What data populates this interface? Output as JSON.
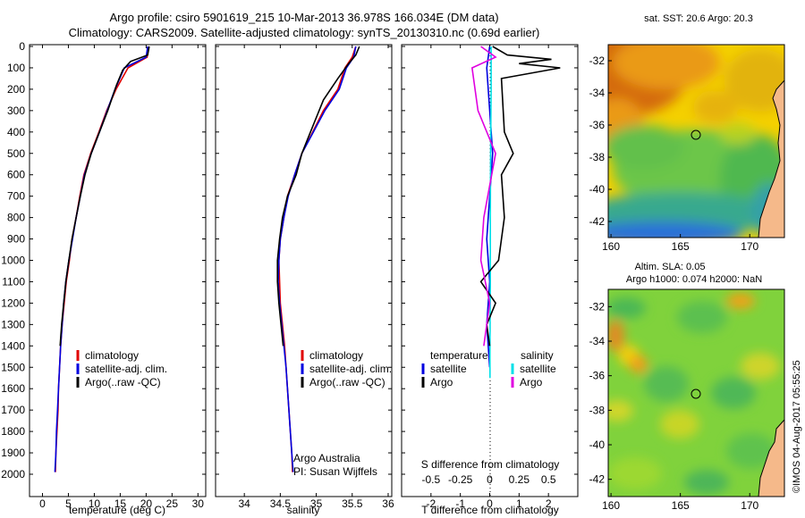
{
  "header": {
    "line1": "Argo profile: csiro 5901619_215 10-Mar-2013 36.978S 166.034E (DM data)",
    "line2": "Climatology: CARS2009. Satellite-adjusted climatology: synTS_20130310.nc (0.69d earlier)"
  },
  "depth_ticks": [
    "0",
    "100",
    "200",
    "300",
    "400",
    "500",
    "600",
    "700",
    "800",
    "900",
    "1000",
    "1100",
    "1200",
    "1300",
    "1400",
    "1500",
    "1600",
    "1700",
    "1800",
    "1900",
    "2000"
  ],
  "colors": {
    "climatology": "#e00000",
    "satellite": "#0000e0",
    "argo": "#000000",
    "sat_salinity": "#00e0e8",
    "argo_salinity": "#e000e0",
    "land": "#f5b98a"
  },
  "chart_data": [
    {
      "type": "line",
      "xlabel": "temperature (deg C)",
      "x_ticks": [
        "0",
        "5",
        "10",
        "15",
        "20",
        "25",
        "30"
      ],
      "xlim": [
        -2.5,
        31.5
      ],
      "ylim": [
        2000,
        0
      ],
      "legend": [
        "climatology",
        "satellite-adj. clim.",
        "Argo(..raw -QC)"
      ],
      "series": [
        {
          "name": "climatology",
          "color": "#e00000",
          "points": [
            [
              20.4,
              0
            ],
            [
              20.2,
              50
            ],
            [
              16.5,
              100
            ],
            [
              14.2,
              200
            ],
            [
              12.4,
              300
            ],
            [
              10.9,
              400
            ],
            [
              9.3,
              500
            ],
            [
              8.0,
              600
            ],
            [
              7.2,
              700
            ],
            [
              6.5,
              800
            ],
            [
              5.7,
              900
            ],
            [
              5.2,
              1000
            ],
            [
              4.6,
              1100
            ],
            [
              4.2,
              1200
            ],
            [
              3.8,
              1300
            ],
            [
              3.5,
              1400
            ],
            [
              3.3,
              1500
            ],
            [
              3.1,
              1600
            ],
            [
              3.0,
              1700
            ],
            [
              2.8,
              1800
            ],
            [
              2.6,
              1900
            ],
            [
              2.5,
              1990
            ]
          ]
        },
        {
          "name": "satellite-adj. clim.",
          "color": "#0000e0",
          "points": [
            [
              20.3,
              0
            ],
            [
              20.0,
              50
            ],
            [
              15.8,
              100
            ],
            [
              14.0,
              200
            ],
            [
              12.5,
              300
            ],
            [
              11.0,
              400
            ],
            [
              9.4,
              500
            ],
            [
              8.1,
              600
            ],
            [
              7.3,
              700
            ],
            [
              6.5,
              800
            ],
            [
              5.8,
              900
            ],
            [
              5.1,
              1000
            ],
            [
              4.5,
              1100
            ],
            [
              4.1,
              1200
            ],
            [
              3.8,
              1300
            ],
            [
              3.5,
              1400
            ],
            [
              3.3,
              1500
            ],
            [
              3.1,
              1600
            ],
            [
              2.9,
              1700
            ],
            [
              2.7,
              1800
            ],
            [
              2.6,
              1900
            ],
            [
              2.4,
              1990
            ]
          ]
        },
        {
          "name": "Argo(..raw -QC)",
          "color": "#000000",
          "points": [
            [
              20.6,
              0
            ],
            [
              20.3,
              40
            ],
            [
              17.0,
              70
            ],
            [
              15.5,
              110
            ],
            [
              14.3,
              180
            ],
            [
              12.6,
              300
            ],
            [
              11.0,
              400
            ],
            [
              9.4,
              500
            ],
            [
              8.2,
              600
            ],
            [
              7.3,
              700
            ],
            [
              6.5,
              800
            ],
            [
              5.7,
              900
            ],
            [
              5.1,
              1000
            ],
            [
              4.5,
              1100
            ],
            [
              4.1,
              1200
            ],
            [
              3.7,
              1300
            ],
            [
              3.4,
              1400
            ]
          ]
        }
      ]
    },
    {
      "type": "line",
      "xlabel": "salinity",
      "x_ticks": [
        "34",
        "34.5",
        "35",
        "35.5",
        "36"
      ],
      "xlim": [
        33.6,
        36.05
      ],
      "ylim": [
        2000,
        0
      ],
      "legend": [
        "climatology",
        "satellite-adj. clim.",
        "Argo(..raw -QC)"
      ],
      "annotation": [
        "Argo Australia",
        "PI: Susan Wijffels"
      ],
      "series": [
        {
          "name": "climatology",
          "color": "#e00000",
          "points": [
            [
              35.55,
              0
            ],
            [
              35.5,
              50
            ],
            [
              35.4,
              100
            ],
            [
              35.3,
              200
            ],
            [
              35.1,
              300
            ],
            [
              34.95,
              400
            ],
            [
              34.8,
              500
            ],
            [
              34.7,
              600
            ],
            [
              34.6,
              700
            ],
            [
              34.55,
              800
            ],
            [
              34.5,
              900
            ],
            [
              34.48,
              1000
            ],
            [
              34.49,
              1100
            ],
            [
              34.5,
              1200
            ],
            [
              34.53,
              1300
            ],
            [
              34.56,
              1400
            ],
            [
              34.58,
              1500
            ],
            [
              34.6,
              1600
            ],
            [
              34.62,
              1700
            ],
            [
              34.64,
              1800
            ],
            [
              34.66,
              1900
            ],
            [
              34.67,
              1990
            ]
          ]
        },
        {
          "name": "satellite-adj. clim.",
          "color": "#0000e0",
          "points": [
            [
              35.55,
              0
            ],
            [
              35.52,
              50
            ],
            [
              35.42,
              100
            ],
            [
              35.32,
              200
            ],
            [
              35.12,
              300
            ],
            [
              34.96,
              400
            ],
            [
              34.8,
              500
            ],
            [
              34.7,
              600
            ],
            [
              34.61,
              700
            ],
            [
              34.55,
              800
            ],
            [
              34.5,
              900
            ],
            [
              34.48,
              1000
            ],
            [
              34.47,
              1100
            ],
            [
              34.49,
              1200
            ],
            [
              34.52,
              1300
            ],
            [
              34.55,
              1400
            ],
            [
              34.58,
              1500
            ],
            [
              34.6,
              1600
            ],
            [
              34.62,
              1700
            ],
            [
              34.64,
              1800
            ],
            [
              34.66,
              1900
            ],
            [
              34.68,
              1990
            ]
          ]
        },
        {
          "name": "Argo(..raw -QC)",
          "color": "#000000",
          "points": [
            [
              35.6,
              0
            ],
            [
              35.55,
              40
            ],
            [
              35.45,
              80
            ],
            [
              35.3,
              150
            ],
            [
              35.1,
              250
            ],
            [
              34.92,
              400
            ],
            [
              34.8,
              500
            ],
            [
              34.72,
              600
            ],
            [
              34.6,
              700
            ],
            [
              34.53,
              800
            ],
            [
              34.49,
              900
            ],
            [
              34.46,
              1000
            ],
            [
              34.46,
              1100
            ],
            [
              34.48,
              1200
            ],
            [
              34.51,
              1300
            ],
            [
              34.54,
              1400
            ]
          ]
        }
      ]
    },
    {
      "type": "line",
      "xlabel": "T difference from climatology",
      "xlabel_top": "S difference from climatology",
      "x_ticks": [
        "-2",
        "-1",
        "0",
        "1",
        "2"
      ],
      "x_ticks_top": [
        "-0.5",
        "-0.25",
        "0",
        "0.25",
        "0.5"
      ],
      "xlim": [
        -3.0,
        3.0
      ],
      "ylim": [
        2000,
        0
      ],
      "legend": [
        [
          "temperature",
          "salinity"
        ],
        [
          "satellite",
          "satellite"
        ],
        [
          "Argo",
          "Argo"
        ]
      ],
      "series": [
        {
          "name": "satellite",
          "color": "#0000e0",
          "points": [
            [
              0,
              0
            ],
            [
              -0.1,
              100
            ],
            [
              0,
              300
            ],
            [
              0.1,
              500
            ],
            [
              0,
              700
            ],
            [
              -0.1,
              900
            ],
            [
              0,
              1100
            ],
            [
              -0.1,
              1300
            ],
            [
              0,
              1500
            ]
          ]
        },
        {
          "name": "satellite",
          "color": "#00e0e8",
          "points": [
            [
              0.05,
              0
            ],
            [
              0.05,
              200
            ],
            [
              0.03,
              500
            ],
            [
              0.02,
              800
            ],
            [
              0.02,
              1100
            ],
            [
              0.01,
              1400
            ],
            [
              0.01,
              1550
            ]
          ]
        },
        {
          "name": "Argo",
          "color": "#000000",
          "points": [
            [
              0.1,
              0
            ],
            [
              0.6,
              40
            ],
            [
              2.1,
              60
            ],
            [
              1.0,
              80
            ],
            [
              2.4,
              100
            ],
            [
              0.4,
              150
            ],
            [
              0.5,
              400
            ],
            [
              0.8,
              500
            ],
            [
              0.4,
              600
            ],
            [
              0.5,
              800
            ],
            [
              0.3,
              1000
            ],
            [
              -0.3,
              1100
            ],
            [
              0.2,
              1200
            ],
            [
              -0.1,
              1300
            ],
            [
              0,
              1400
            ]
          ]
        },
        {
          "name": "Argo",
          "color": "#e000e0",
          "points": [
            [
              -0.3,
              0
            ],
            [
              0.2,
              50
            ],
            [
              -0.6,
              100
            ],
            [
              -0.4,
              300
            ],
            [
              0.2,
              500
            ],
            [
              -0.2,
              800
            ],
            [
              -0.3,
              1000
            ],
            [
              0,
              1200
            ],
            [
              -0.2,
              1400
            ]
          ]
        }
      ]
    },
    {
      "type": "heatmap",
      "title": "sat. SST: 20.6  Argo: 20.3",
      "x_ticks": [
        "160",
        "165",
        "170"
      ],
      "y_ticks": [
        "-32",
        "-34",
        "-36",
        "-38",
        "-40",
        "-42"
      ],
      "xlim": [
        159.8,
        172.5
      ],
      "ylim": [
        -43,
        -31
      ]
    },
    {
      "type": "heatmap",
      "title_lines": [
        "Altim. SLA: 0.05",
        "Argo h1000: 0.074  h2000: NaN"
      ],
      "x_ticks": [
        "160",
        "165",
        "170"
      ],
      "y_ticks": [
        "-32",
        "-34",
        "-36",
        "-38",
        "-40",
        "-42"
      ],
      "xlim": [
        159.8,
        172.5
      ],
      "ylim": [
        -43,
        -31
      ]
    }
  ],
  "footer": {
    "stamp": "©IMOS 04-Aug-2017 05:55:25"
  }
}
